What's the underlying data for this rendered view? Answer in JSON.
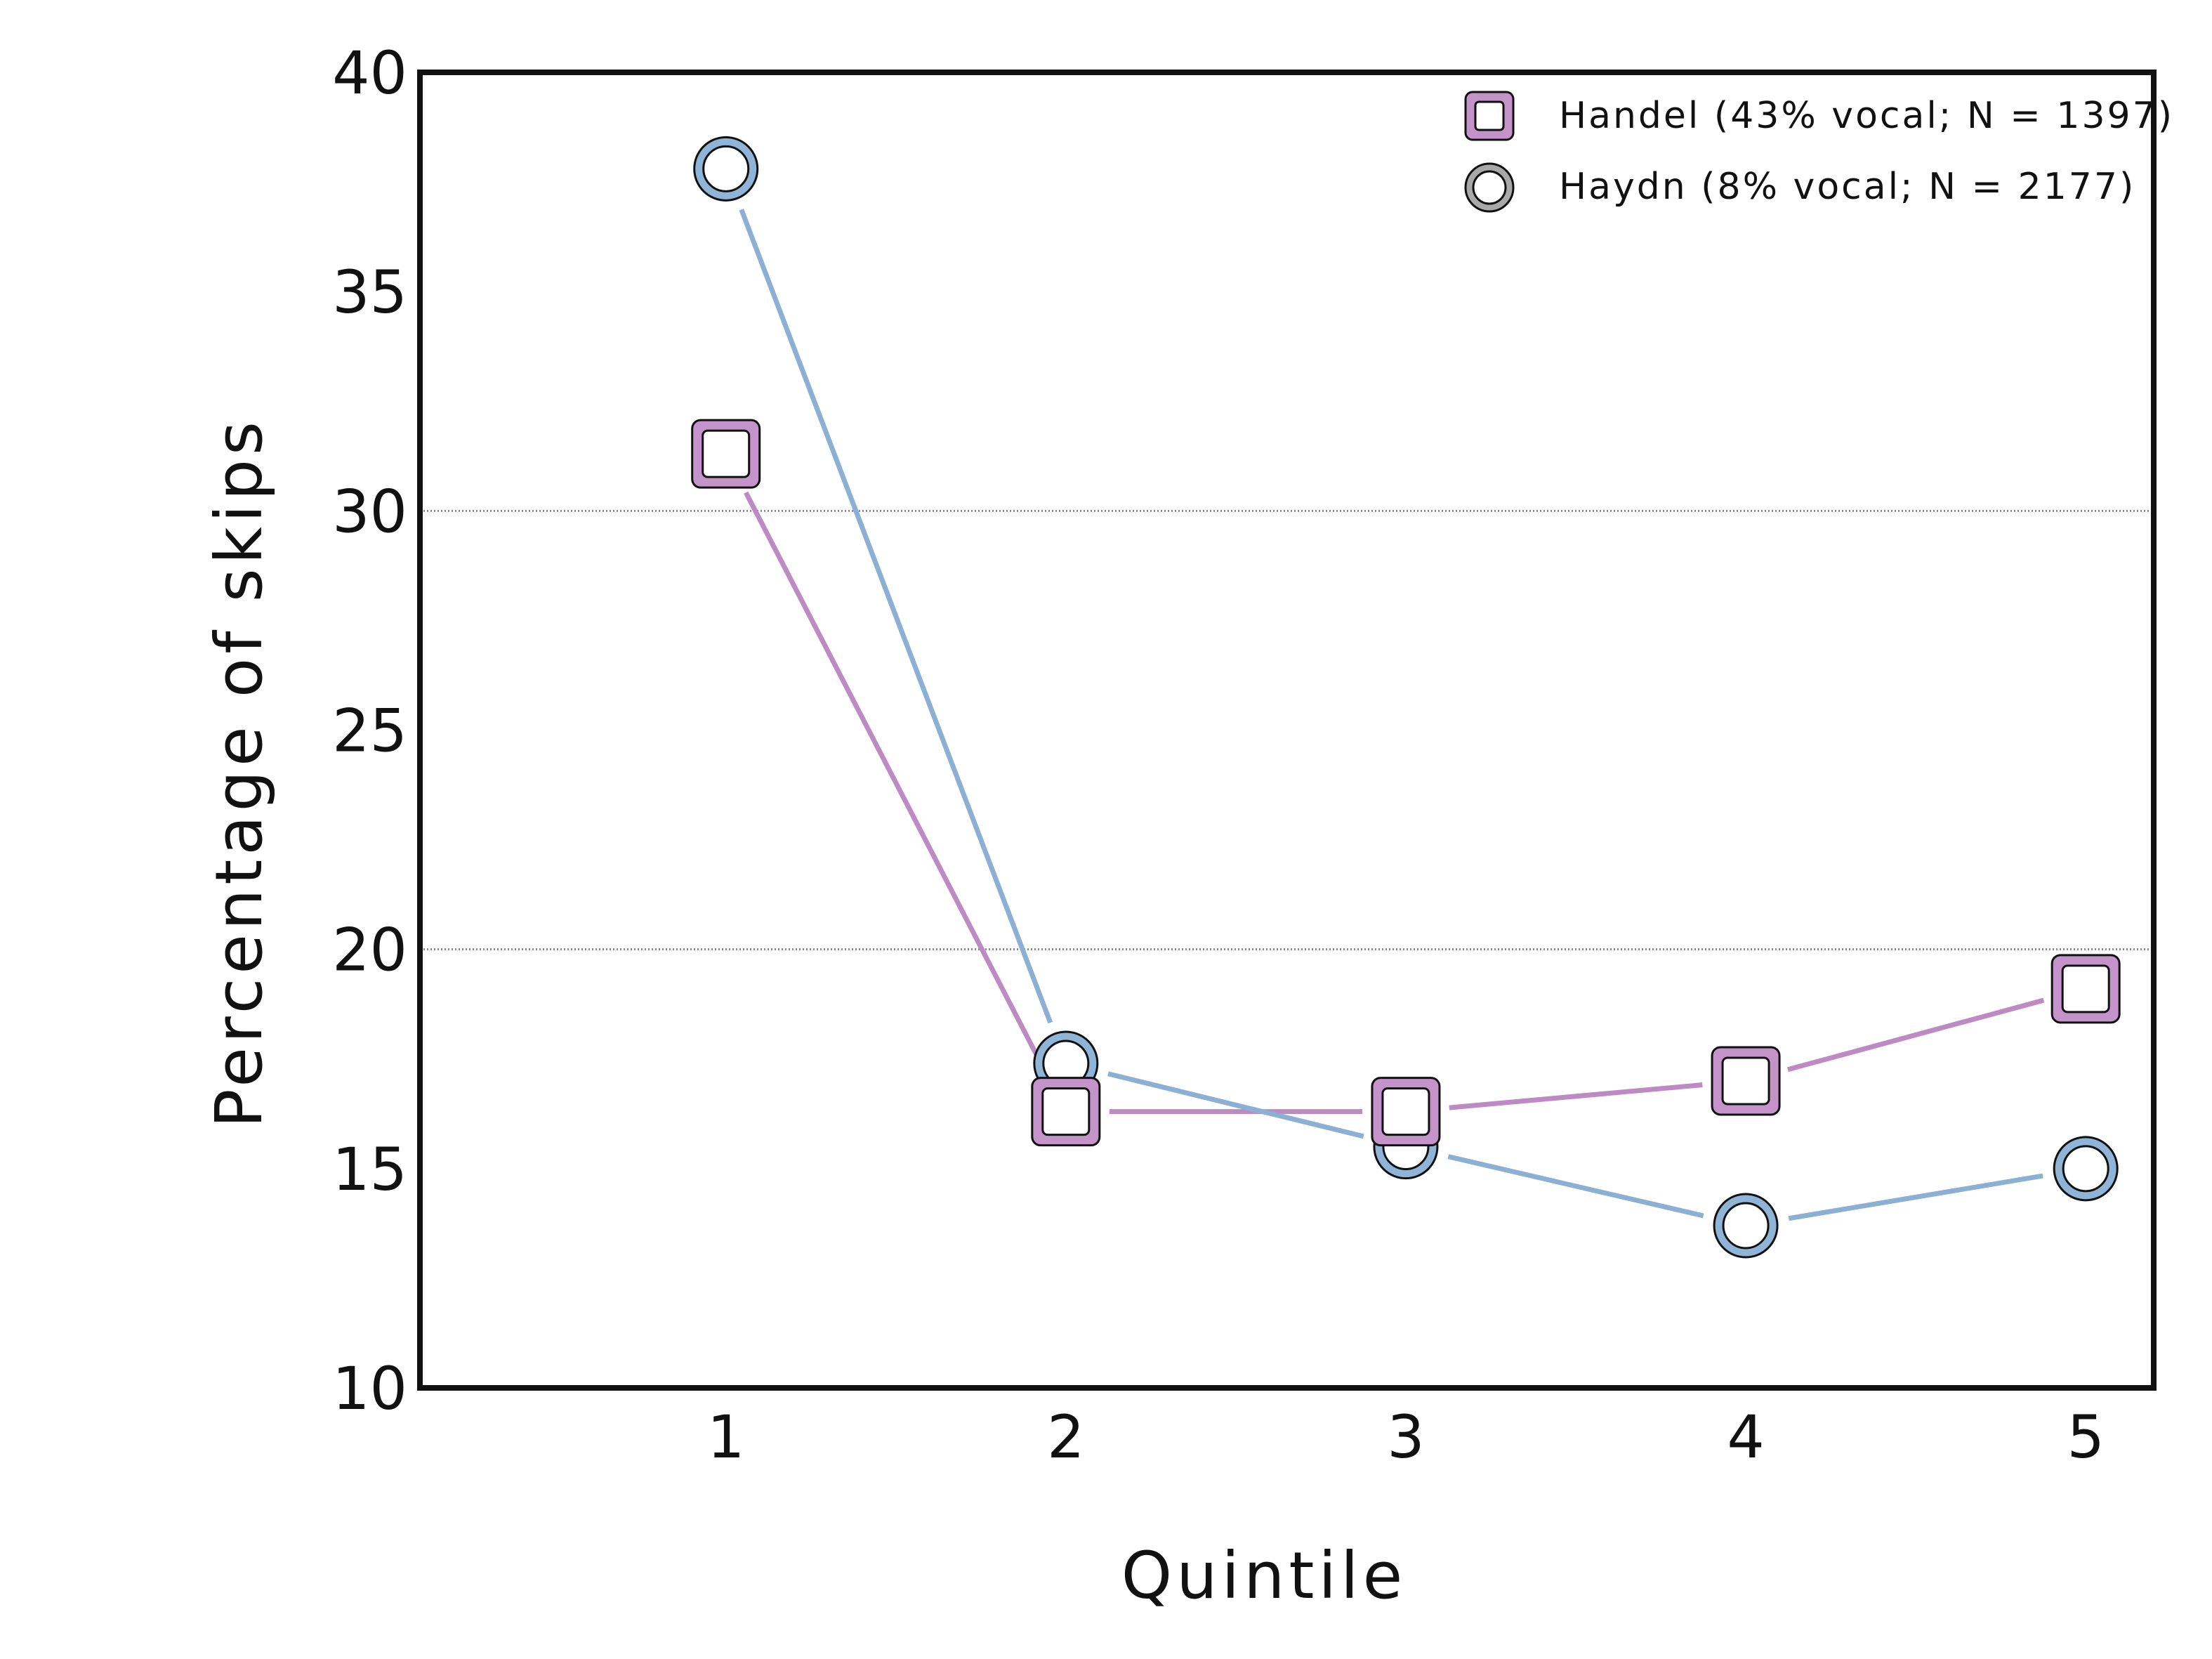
{
  "chart_data": {
    "type": "line",
    "xlabel": "Quintile",
    "ylabel": "Percentage of skips",
    "xlim": [
      0.1,
      5.2
    ],
    "ylim": [
      10,
      40
    ],
    "x_ticks": [
      "1",
      "2",
      "3",
      "4",
      "5"
    ],
    "y_ticks": [
      "10",
      "15",
      "20",
      "25",
      "30",
      "35",
      "40"
    ],
    "gridlines_y": [
      20,
      30
    ],
    "grid": "horizontal at 20 and 30",
    "legend_position": "top-right",
    "series": [
      {
        "name": "Handel (43% vocal; N = 1397)",
        "marker": "square",
        "line_color": "#be8ac4",
        "marker_fill": "#c493c9",
        "x": [
          1,
          2,
          3,
          4,
          5
        ],
        "values": [
          31.3,
          16.3,
          16.3,
          17.0,
          19.1
        ]
      },
      {
        "name": "Haydn (8% vocal; N = 2177)",
        "marker": "circle",
        "line_color": "#8bb0d3",
        "marker_fill": "#8fb4d6",
        "x": [
          1,
          2,
          3,
          4,
          5
        ],
        "values": [
          37.8,
          17.4,
          15.5,
          13.7,
          15.0
        ]
      }
    ]
  },
  "legend": {
    "swatch_colors": [
      "#c493c9",
      "#a9a9a9"
    ]
  }
}
